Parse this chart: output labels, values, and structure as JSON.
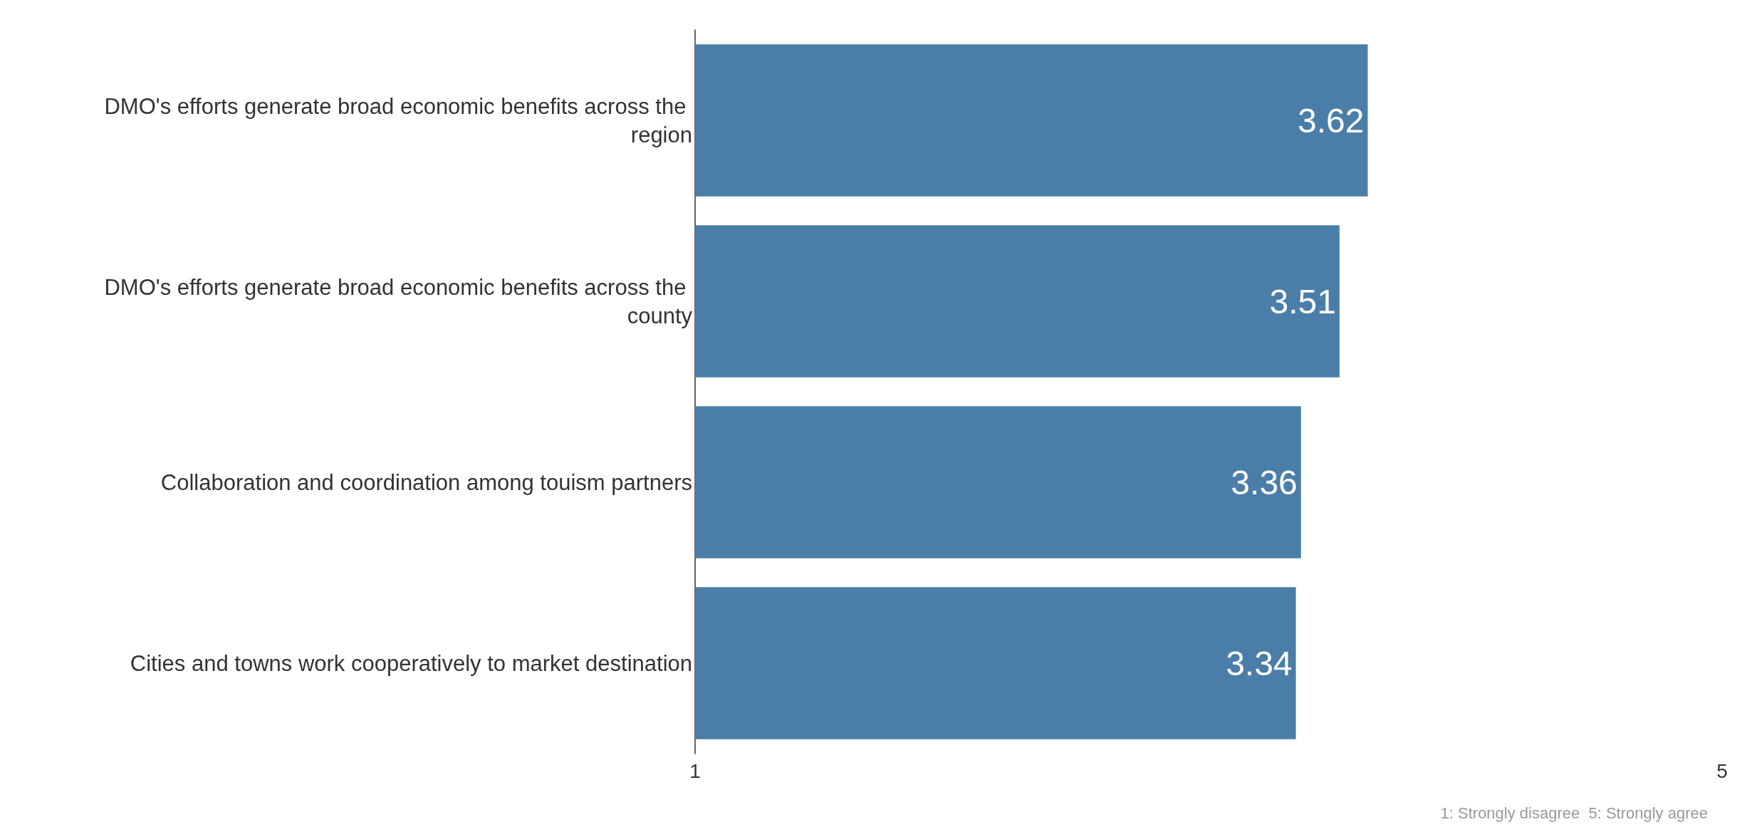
{
  "chart_data": {
    "type": "bar",
    "orientation": "horizontal",
    "categories": [
      "DMO's efforts generate broad economic benefits across the region",
      "DMO's efforts generate broad economic benefits across the county",
      "Collaboration and coordination among touism partners",
      "Cities and towns work cooperatively to market destination"
    ],
    "values": [
      3.62,
      3.51,
      3.36,
      3.34
    ],
    "color": "#4a7ea8",
    "xlim": [
      1,
      5
    ],
    "xticks": [
      1,
      5
    ],
    "data_labels": true,
    "grid": false,
    "annotations": [
      "1: Strongly disagree  5: Strongly agree"
    ]
  }
}
